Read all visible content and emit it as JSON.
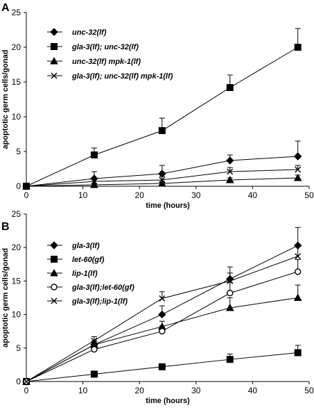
{
  "figure": {
    "panels": [
      "A",
      "B"
    ]
  },
  "chart_data": [
    {
      "panel_label": "A",
      "type": "line",
      "xlabel": "time (hours)",
      "ylabel": "apoptotic germ cells/gonad",
      "xlim": [
        0,
        50
      ],
      "ylim": [
        0,
        25
      ],
      "xticks": [
        0,
        10,
        20,
        30,
        40,
        50
      ],
      "yticks": [
        0,
        5,
        10,
        15,
        20,
        25
      ],
      "grid": false,
      "legend_position": "top-left",
      "x": [
        0,
        12,
        24,
        36,
        48
      ],
      "series": [
        {
          "name": "unc-32(lf)",
          "marker": "diamond",
          "values": [
            0,
            1.1,
            1.8,
            3.7,
            4.3
          ],
          "errors": [
            0,
            1.0,
            1.2,
            0.8,
            2.2
          ]
        },
        {
          "name": "gla-3(lf); unc-32(lf)",
          "marker": "square",
          "values": [
            0,
            4.5,
            8.0,
            14.2,
            20.0
          ],
          "errors": [
            0,
            1.0,
            1.8,
            1.8,
            2.7
          ]
        },
        {
          "name": "unc-32(lf) mpk-1(lf)",
          "marker": "triangle",
          "values": [
            0,
            0.2,
            0.4,
            0.9,
            1.2
          ],
          "errors": [
            0,
            0.2,
            0.3,
            0.3,
            0.4
          ]
        },
        {
          "name": "gla-3(lf); unc-32(lf) mpk-1(lf)",
          "marker": "x",
          "values": [
            0,
            0.7,
            0.9,
            2.1,
            2.4
          ],
          "errors": [
            0,
            0.4,
            0.5,
            0.6,
            0.6
          ]
        }
      ]
    },
    {
      "panel_label": "B",
      "type": "line",
      "xlabel": "time (hours)",
      "ylabel": "apoptotic germ cells/gonad",
      "xlim": [
        0,
        50
      ],
      "ylim": [
        0,
        25
      ],
      "xticks": [
        0,
        10,
        20,
        30,
        40,
        50
      ],
      "yticks": [
        0,
        5,
        10,
        15,
        20,
        25
      ],
      "grid": false,
      "legend_position": "top-left",
      "x": [
        0,
        12,
        24,
        36,
        48
      ],
      "series": [
        {
          "name": "gla-3(lf)",
          "marker": "diamond",
          "values": [
            0,
            5.5,
            10.0,
            15.3,
            20.3
          ],
          "errors": [
            0,
            0.6,
            1.3,
            1.8,
            2.7
          ]
        },
        {
          "name": "let-60(gf)",
          "marker": "square",
          "values": [
            0,
            1.1,
            2.2,
            3.3,
            4.3
          ],
          "errors": [
            0,
            0.2,
            0.3,
            0.8,
            1.1
          ]
        },
        {
          "name": "lip-1(lf)",
          "marker": "triangle",
          "values": [
            0,
            5.5,
            8.2,
            11.0,
            12.5
          ],
          "errors": [
            0,
            0.5,
            0.8,
            1.5,
            1.9
          ]
        },
        {
          "name": "gla-3(lf);let-60(gf)",
          "marker": "circle",
          "values": [
            0,
            4.8,
            7.5,
            13.2,
            16.4
          ],
          "errors": [
            0,
            0.4,
            0.8,
            1.6,
            1.8
          ]
        },
        {
          "name": "gla-3(lf);lip-1(lf)",
          "marker": "x",
          "values": [
            0,
            6.1,
            12.4,
            15.0,
            18.7
          ],
          "errors": [
            0,
            0.6,
            1.0,
            1.2,
            1.5
          ]
        }
      ]
    }
  ]
}
